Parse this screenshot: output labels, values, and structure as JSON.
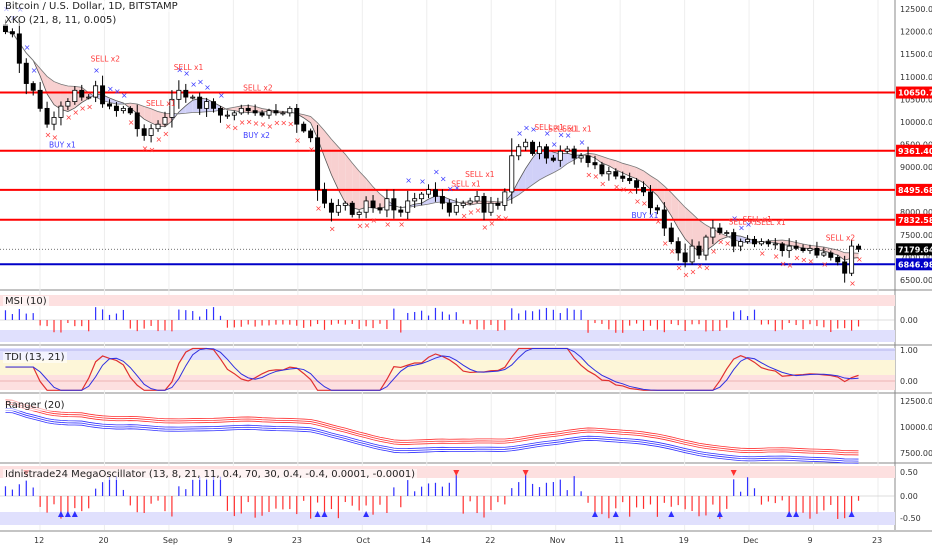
{
  "header": {
    "symbol_line": "Bitcoin / U.S. Dollar, 1D, BITSTAMP",
    "indicator_line": "XKO (21, 8, 11, 0.005)"
  },
  "colors": {
    "level_red": "#ff0000",
    "level_blue": "#0000c8",
    "candle_up": "#ffffff",
    "candle_down": "#000000",
    "sell_marker": "#ff3b3b",
    "buy_marker": "#3b3bff",
    "cloud_bear": "#f8d0d0",
    "cloud_bull": "#d0d0f8",
    "macd_red": "#ff3030",
    "macd_blue": "#3030ff"
  },
  "price_axis": {
    "ticks": [
      "12500.00",
      "12000.00",
      "11500.00",
      "11000.00",
      "10500.00",
      "10000.00",
      "9500.00",
      "9000.00",
      "8500.00",
      "8000.00",
      "7500.00",
      "7000.00",
      "6500.00"
    ],
    "levels": [
      {
        "label": "10650.75",
        "value": 10650.75,
        "color": "red"
      },
      {
        "label": "9361.40",
        "value": 9361.4,
        "color": "red"
      },
      {
        "label": "8495.68",
        "value": 8495.68,
        "color": "red"
      },
      {
        "label": "7832.58",
        "value": 7832.58,
        "color": "red"
      },
      {
        "label": "7179.64",
        "value": 7179.64,
        "color": "dark"
      },
      {
        "label": "6846.98",
        "value": 6846.98,
        "color": "blue"
      }
    ]
  },
  "signals": [
    {
      "text": "SELL x2",
      "type": "sell"
    },
    {
      "text": "SELL x1",
      "type": "sell"
    },
    {
      "text": "SELL x1",
      "type": "sell"
    },
    {
      "text": "BUY x1",
      "type": "buy"
    },
    {
      "text": "SELL x2",
      "type": "sell"
    },
    {
      "text": "BUY x2",
      "type": "buy"
    },
    {
      "text": "SELL x1",
      "type": "sell"
    },
    {
      "text": "SELL x1",
      "type": "sell"
    },
    {
      "text": "SELL x1",
      "type": "sell"
    },
    {
      "text": "SELL x1",
      "type": "sell"
    },
    {
      "text": "SELL x1",
      "type": "sell"
    },
    {
      "text": "BUY x1",
      "type": "buy"
    },
    {
      "text": "SELL x1",
      "type": "sell"
    },
    {
      "text": "SELL x1",
      "type": "sell"
    },
    {
      "text": "SELL x1",
      "type": "sell"
    },
    {
      "text": "SELL x2",
      "type": "sell"
    }
  ],
  "panels": {
    "msi": {
      "title": "MSI (10)",
      "ticks": [
        "0.00"
      ]
    },
    "tdi": {
      "title": "TDI (13, 21)",
      "ticks": [
        "1.00",
        "0.00"
      ]
    },
    "ranger": {
      "title": "Ranger (20)",
      "ticks": [
        "12500.00",
        "10000.00",
        "7500.00"
      ]
    },
    "mega": {
      "title": "Idnistrade24 MegaOscillator (13, 8, 21, 11, 0.4, 70, 30, 0.4, -0.4, 0.0001, -0.0001)",
      "ticks": [
        "0.50",
        "0.00",
        "-0.50"
      ]
    }
  },
  "time_axis": {
    "labels": [
      "12",
      "20",
      "Sep",
      "9",
      "23",
      "Oct",
      "14",
      "22",
      "Nov",
      "11",
      "19",
      "Dec",
      "9",
      "23"
    ]
  },
  "chart_data": [
    {
      "type": "candlestick",
      "title": "Bitcoin / U.S. Dollar, 1D, BITSTAMP",
      "y_range": [
        6300,
        12700
      ],
      "close": [
        12000,
        11950,
        11300,
        10850,
        10700,
        10300,
        9950,
        10100,
        10350,
        10450,
        10700,
        10550,
        10550,
        10800,
        10400,
        10350,
        10250,
        10300,
        10200,
        9850,
        9700,
        9850,
        9950,
        10100,
        10500,
        10700,
        10550,
        10550,
        10300,
        10450,
        10300,
        10150,
        10150,
        10200,
        10300,
        10250,
        10200,
        10150,
        10250,
        10200,
        10200,
        10300,
        9950,
        9800,
        9650,
        8500,
        8200,
        8000,
        8150,
        8200,
        7950,
        8000,
        8250,
        8100,
        8050,
        8300,
        8050,
        8000,
        8250,
        8300,
        8400,
        8500,
        8350,
        8200,
        8000,
        8150,
        8200,
        8250,
        8350,
        8000,
        8200,
        8150,
        8450,
        9250,
        9450,
        9550,
        9300,
        9450,
        9200,
        9150,
        9350,
        9400,
        9200,
        9250,
        9100,
        9050,
        8850,
        8900,
        8800,
        8750,
        8700,
        8550,
        8450,
        8100,
        8050,
        7650,
        7350,
        7100,
        6900,
        7250,
        7050,
        7450,
        7650,
        7550,
        7550,
        7250,
        7350,
        7400,
        7300,
        7350,
        7300,
        7300,
        7150,
        7250,
        7200,
        7150,
        7200,
        7050,
        7100,
        7000,
        6900,
        6650,
        7250,
        7180
      ],
      "support_resistance": [
        10650.75,
        9361.4,
        8495.68,
        7832.58,
        7179.64,
        6846.98
      ]
    }
  ]
}
